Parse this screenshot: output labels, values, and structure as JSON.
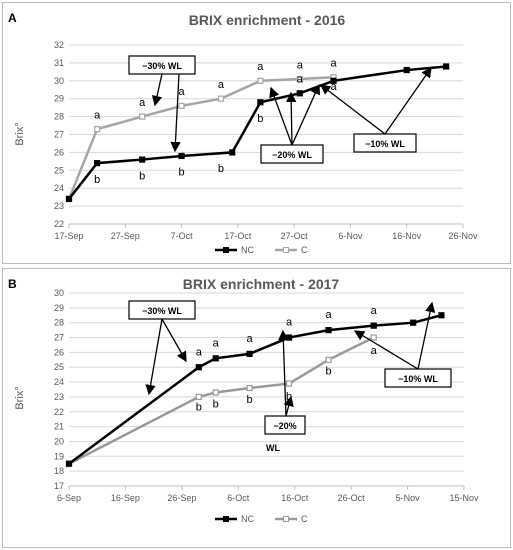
{
  "chart_data": [
    {
      "panel": "A",
      "type": "line",
      "title": "BRIX enrichment - 2016",
      "ylabel": "Brix°",
      "xlabel": "",
      "ylim": [
        22,
        32
      ],
      "x_ticks": [
        "17-Sep",
        "27-Sep",
        "7-Oct",
        "17-Oct",
        "27-Oct",
        "6-Nov",
        "16-Nov",
        "26-Nov"
      ],
      "x_tick_days": [
        0,
        10,
        20,
        30,
        40,
        50,
        60,
        70
      ],
      "y_ticks": [
        22,
        23,
        24,
        25,
        26,
        27,
        28,
        29,
        30,
        31,
        32
      ],
      "grid": true,
      "legend": "bottom",
      "series": [
        {
          "name": "NC",
          "color": "#000000",
          "x": [
            0,
            5,
            13,
            20,
            29,
            34,
            41,
            47,
            60,
            67
          ],
          "y": [
            23.4,
            25.4,
            25.6,
            25.8,
            26.0,
            28.8,
            29.3,
            30.0,
            30.6,
            30.8
          ]
        },
        {
          "name": "C",
          "color": "#a6a6a6",
          "x": [
            0,
            5,
            13,
            20,
            27,
            34,
            41,
            47
          ],
          "y": [
            23.4,
            27.3,
            28.0,
            28.6,
            29.0,
            30.0,
            30.1,
            30.2
          ]
        }
      ],
      "annotations": [
        {
          "text": "a",
          "x": 5,
          "y": 27.9
        },
        {
          "text": "a",
          "x": 13,
          "y": 28.6
        },
        {
          "text": "a",
          "x": 20,
          "y": 29.2
        },
        {
          "text": "a",
          "x": 27,
          "y": 29.6
        },
        {
          "text": "a",
          "x": 34,
          "y": 30.6
        },
        {
          "text": "a",
          "x": 41,
          "y": 30.7
        },
        {
          "text": "a",
          "x": 47,
          "y": 30.8
        },
        {
          "text": "a",
          "x": 41,
          "y": 29.9
        },
        {
          "text": "a",
          "x": 47,
          "y": 29.5
        },
        {
          "text": "b",
          "x": 5,
          "y": 24.3
        },
        {
          "text": "b",
          "x": 13,
          "y": 24.5
        },
        {
          "text": "b",
          "x": 20,
          "y": 24.7
        },
        {
          "text": "b",
          "x": 27,
          "y": 24.9
        },
        {
          "text": "b",
          "x": 34,
          "y": 27.7
        }
      ],
      "callouts": [
        "−10% WL",
        "−20% WL",
        "−30% WL"
      ]
    },
    {
      "panel": "B",
      "type": "line",
      "title": "BRIX enrichment - 2017",
      "ylabel": "Brix°",
      "xlabel": "",
      "ylim": [
        17,
        30
      ],
      "x_ticks": [
        "6-Sep",
        "16-Sep",
        "26-Sep",
        "6-Oct",
        "16-Oct",
        "26-Oct",
        "5-Nov",
        "15-Nov"
      ],
      "x_tick_days": [
        0,
        10,
        20,
        30,
        40,
        50,
        60,
        70
      ],
      "y_ticks": [
        17,
        18,
        19,
        20,
        21,
        22,
        23,
        24,
        25,
        26,
        27,
        28,
        29,
        30
      ],
      "grid": true,
      "legend": "bottom",
      "series": [
        {
          "name": "NC",
          "color": "#000000",
          "x": [
            0,
            23,
            26,
            32,
            39,
            46,
            54,
            61,
            66
          ],
          "y": [
            18.5,
            25.0,
            25.6,
            25.9,
            27.0,
            27.5,
            27.8,
            28.0,
            28.5
          ]
        },
        {
          "name": "C",
          "color": "#999999",
          "x": [
            0,
            23,
            26,
            32,
            39,
            46,
            54
          ],
          "y": [
            18.5,
            23.0,
            23.3,
            23.6,
            23.9,
            25.5,
            27.0
          ]
        }
      ],
      "annotations": [
        {
          "text": "a",
          "x": 23,
          "y": 25.8
        },
        {
          "text": "a",
          "x": 26,
          "y": 26.4
        },
        {
          "text": "a",
          "x": 32,
          "y": 26.7
        },
        {
          "text": "a",
          "x": 39,
          "y": 27.8
        },
        {
          "text": "a",
          "x": 46,
          "y": 28.3
        },
        {
          "text": "a",
          "x": 54,
          "y": 28.6
        },
        {
          "text": "a",
          "x": 54,
          "y": 25.9
        },
        {
          "text": "b",
          "x": 23,
          "y": 22.1
        },
        {
          "text": "b",
          "x": 26,
          "y": 22.3
        },
        {
          "text": "b",
          "x": 32,
          "y": 22.6
        },
        {
          "text": "b",
          "x": 39,
          "y": 22.8
        },
        {
          "text": "b",
          "x": 46,
          "y": 24.5
        }
      ],
      "callouts": [
        "−10% WL",
        "−20%",
        "WL",
        "−30% WL"
      ]
    }
  ]
}
